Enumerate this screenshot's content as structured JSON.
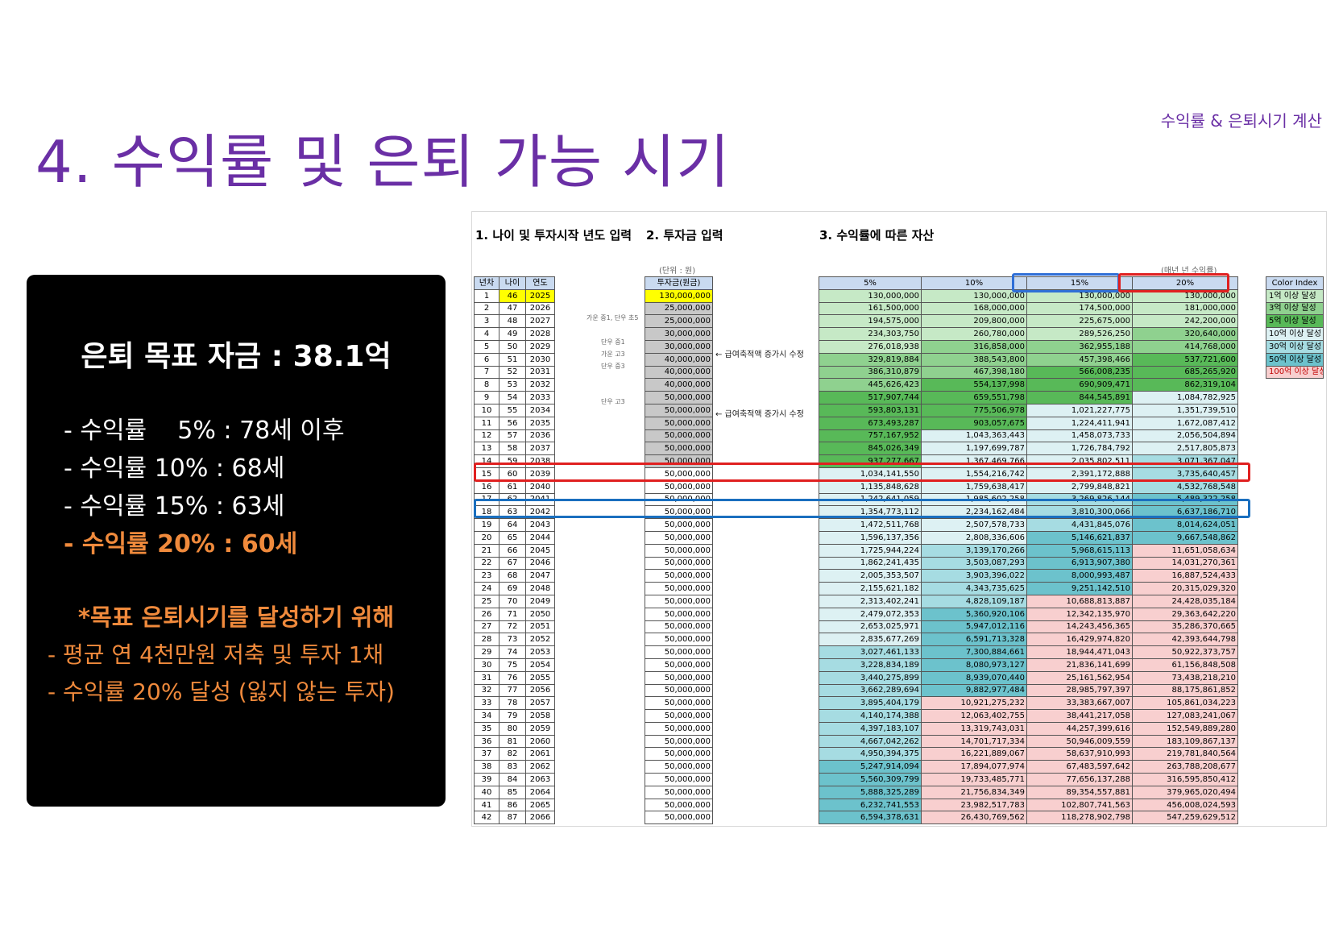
{
  "header": {
    "title": "4. 수익률 및 은퇴 가능 시기",
    "corner_label": "수익률 & 은퇴시기 계산"
  },
  "panel": {
    "goal": "은퇴 목표 자금 : 38.1억",
    "items": [
      "- 수익률    5% : 78세 이후",
      "- 수익률 10% : 68세",
      "- 수익률 15% : 63세",
      "- 수익률 20% : 60세"
    ],
    "note": "*목표 은퇴시기를 달성하기 위해",
    "subs": [
      "- 평균 연 4천만원 저축 및 투자 1채",
      "- 수익률 20% 달성 (잃지 않는 투자)"
    ]
  },
  "sheet": {
    "section1": "1. 나이 및 투자시작 년도 입력",
    "section2": "2. 투자금 입력",
    "section3": "3. 수익률에 따른 자산",
    "unit_label": "(단위 : 원)",
    "rate_note": "(매년 년 수익률)",
    "col_headers": [
      "년차",
      "나이",
      "연도",
      "투자금(원금)",
      "5%",
      "10%",
      "15%",
      "20%"
    ],
    "side_notes": [
      "가운 중1, 단우 초5",
      "단우 중1",
      "가운 고3",
      "단우 중3",
      "단우 고3"
    ],
    "arrow_notes": [
      "← 급여축적액 증가시 수정",
      "← 급여축적액 증가시 수정"
    ],
    "color_index": {
      "title": "Color Index",
      "items": [
        {
          "label": "1억 이상 달성",
          "color": "#c6e9c6"
        },
        {
          "label": "3억 이상 달성",
          "color": "#8fd18f"
        },
        {
          "label": "5억 이상 달성",
          "color": "#58b958"
        },
        {
          "label": "10억 이상 달성",
          "color": "#ddf1f3"
        },
        {
          "label": "30억 이상 달성",
          "color": "#a6dce2"
        },
        {
          "label": "50억 이상 달성",
          "color": "#6cc2cc"
        },
        {
          "label": "100억 이상 달성",
          "color": "#f8cfcf"
        }
      ]
    },
    "rows": [
      [
        "1",
        "46",
        "2025",
        "130,000,000",
        "130,000,000",
        "130,000,000",
        "130,000,000",
        "130,000,000"
      ],
      [
        "2",
        "47",
        "2026",
        "25,000,000",
        "161,500,000",
        "168,000,000",
        "174,500,000",
        "181,000,000"
      ],
      [
        "3",
        "48",
        "2027",
        "25,000,000",
        "194,575,000",
        "209,800,000",
        "225,675,000",
        "242,200,000"
      ],
      [
        "4",
        "49",
        "2028",
        "30,000,000",
        "234,303,750",
        "260,780,000",
        "289,526,250",
        "320,640,000"
      ],
      [
        "5",
        "50",
        "2029",
        "30,000,000",
        "276,018,938",
        "316,858,000",
        "362,955,188",
        "414,768,000"
      ],
      [
        "6",
        "51",
        "2030",
        "40,000,000",
        "329,819,884",
        "388,543,800",
        "457,398,466",
        "537,721,600"
      ],
      [
        "7",
        "52",
        "2031",
        "40,000,000",
        "386,310,879",
        "467,398,180",
        "566,008,235",
        "685,265,920"
      ],
      [
        "8",
        "53",
        "2032",
        "40,000,000",
        "445,626,423",
        "554,137,998",
        "690,909,471",
        "862,319,104"
      ],
      [
        "9",
        "54",
        "2033",
        "50,000,000",
        "517,907,744",
        "659,551,798",
        "844,545,891",
        "1,084,782,925"
      ],
      [
        "10",
        "55",
        "2034",
        "50,000,000",
        "593,803,131",
        "775,506,978",
        "1,021,227,775",
        "1,351,739,510"
      ],
      [
        "11",
        "56",
        "2035",
        "50,000,000",
        "673,493,287",
        "903,057,675",
        "1,224,411,941",
        "1,672,087,412"
      ],
      [
        "12",
        "57",
        "2036",
        "50,000,000",
        "757,167,952",
        "1,043,363,443",
        "1,458,073,733",
        "2,056,504,894"
      ],
      [
        "13",
        "58",
        "2037",
        "50,000,000",
        "845,026,349",
        "1,197,699,787",
        "1,726,784,792",
        "2,517,805,873"
      ],
      [
        "14",
        "59",
        "2038",
        "50,000,000",
        "937,277,667",
        "1,367,469,766",
        "2,035,802,511",
        "3,071,367,047"
      ],
      [
        "15",
        "60",
        "2039",
        "50,000,000",
        "1,034,141,550",
        "1,554,216,742",
        "2,391,172,888",
        "3,735,640,457"
      ],
      [
        "16",
        "61",
        "2040",
        "50,000,000",
        "1,135,848,628",
        "1,759,638,417",
        "2,799,848,821",
        "4,532,768,548"
      ],
      [
        "17",
        "62",
        "2041",
        "50,000,000",
        "1,242,641,059",
        "1,985,602,258",
        "3,269,826,144",
        "5,489,322,258"
      ],
      [
        "18",
        "63",
        "2042",
        "50,000,000",
        "1,354,773,112",
        "2,234,162,484",
        "3,810,300,066",
        "6,637,186,710"
      ],
      [
        "19",
        "64",
        "2043",
        "50,000,000",
        "1,472,511,768",
        "2,507,578,733",
        "4,431,845,076",
        "8,014,624,051"
      ],
      [
        "20",
        "65",
        "2044",
        "50,000,000",
        "1,596,137,356",
        "2,808,336,606",
        "5,146,621,837",
        "9,667,548,862"
      ],
      [
        "21",
        "66",
        "2045",
        "50,000,000",
        "1,725,944,224",
        "3,139,170,266",
        "5,968,615,113",
        "11,651,058,634"
      ],
      [
        "22",
        "67",
        "2046",
        "50,000,000",
        "1,862,241,435",
        "3,503,087,293",
        "6,913,907,380",
        "14,031,270,361"
      ],
      [
        "23",
        "68",
        "2047",
        "50,000,000",
        "2,005,353,507",
        "3,903,396,022",
        "8,000,993,487",
        "16,887,524,433"
      ],
      [
        "24",
        "69",
        "2048",
        "50,000,000",
        "2,155,621,182",
        "4,343,735,625",
        "9,251,142,510",
        "20,315,029,320"
      ],
      [
        "25",
        "70",
        "2049",
        "50,000,000",
        "2,313,402,241",
        "4,828,109,187",
        "10,688,813,887",
        "24,428,035,184"
      ],
      [
        "26",
        "71",
        "2050",
        "50,000,000",
        "2,479,072,353",
        "5,360,920,106",
        "12,342,135,970",
        "29,363,642,220"
      ],
      [
        "27",
        "72",
        "2051",
        "50,000,000",
        "2,653,025,971",
        "5,947,012,116",
        "14,243,456,365",
        "35,286,370,665"
      ],
      [
        "28",
        "73",
        "2052",
        "50,000,000",
        "2,835,677,269",
        "6,591,713,328",
        "16,429,974,820",
        "42,393,644,798"
      ],
      [
        "29",
        "74",
        "2053",
        "50,000,000",
        "3,027,461,133",
        "7,300,884,661",
        "18,944,471,043",
        "50,922,373,757"
      ],
      [
        "30",
        "75",
        "2054",
        "50,000,000",
        "3,228,834,189",
        "8,080,973,127",
        "21,836,141,699",
        "61,156,848,508"
      ],
      [
        "31",
        "76",
        "2055",
        "50,000,000",
        "3,440,275,899",
        "8,939,070,440",
        "25,161,562,954",
        "73,438,218,210"
      ],
      [
        "32",
        "77",
        "2056",
        "50,000,000",
        "3,662,289,694",
        "9,882,977,484",
        "28,985,797,397",
        "88,175,861,852"
      ],
      [
        "33",
        "78",
        "2057",
        "50,000,000",
        "3,895,404,179",
        "10,921,275,232",
        "33,383,667,007",
        "105,861,034,223"
      ],
      [
        "34",
        "79",
        "2058",
        "50,000,000",
        "4,140,174,388",
        "12,063,402,755",
        "38,441,217,058",
        "127,083,241,067"
      ],
      [
        "35",
        "80",
        "2059",
        "50,000,000",
        "4,397,183,107",
        "13,319,743,031",
        "44,257,399,616",
        "152,549,889,280"
      ],
      [
        "36",
        "81",
        "2060",
        "50,000,000",
        "4,667,042,262",
        "14,701,717,334",
        "50,946,009,559",
        "183,109,867,137"
      ],
      [
        "37",
        "82",
        "2061",
        "50,000,000",
        "4,950,394,375",
        "16,221,889,067",
        "58,637,910,993",
        "219,781,840,564"
      ],
      [
        "38",
        "83",
        "2062",
        "50,000,000",
        "5,247,914,094",
        "17,894,077,974",
        "67,483,597,642",
        "263,788,208,677"
      ],
      [
        "39",
        "84",
        "2063",
        "50,000,000",
        "5,560,309,799",
        "19,733,485,771",
        "77,656,137,288",
        "316,595,850,412"
      ],
      [
        "40",
        "85",
        "2064",
        "50,000,000",
        "5,888,325,289",
        "21,756,834,349",
        "89,354,557,881",
        "379,965,020,494"
      ],
      [
        "41",
        "86",
        "2065",
        "50,000,000",
        "6,232,741,553",
        "23,982,517,783",
        "102,807,741,563",
        "456,008,024,593"
      ],
      [
        "42",
        "87",
        "2066",
        "50,000,000",
        "6,594,378,631",
        "26,430,769,562",
        "118,278,902,798",
        "547,259,629,512"
      ]
    ]
  }
}
